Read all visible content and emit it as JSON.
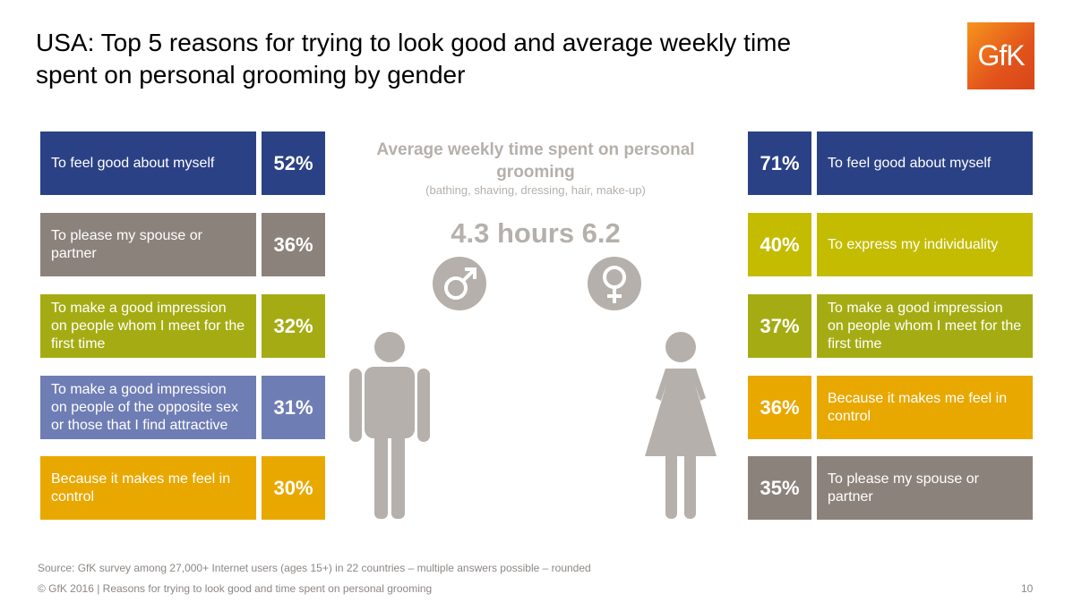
{
  "title": "USA: Top 5 reasons for trying to look good and average weekly time spent on personal grooming by gender",
  "logo": "GfK",
  "center": {
    "heading": "Average weekly time spent on personal grooming",
    "subheading": "(bathing, shaving, dressing, hair, make-up)",
    "hours_text": "4.3 hours 6.2"
  },
  "footer": {
    "source": "Source: GfK survey among 27,000+ Internet users (ages 15+) in 22 countries – multiple answers possible – rounded",
    "copyright": "© GfK 2016 | Reasons for trying to look good and time spent on personal grooming",
    "page": "10"
  },
  "chart_data": [
    {
      "type": "table",
      "gender": "male",
      "categories": [
        "To feel good about myself",
        "To please my spouse or partner",
        "To make a good impression on people whom I meet for the first time",
        "To make a good impression on people of the opposite sex or those that I find attractive",
        "Because it makes me feel in control"
      ],
      "values": [
        52,
        36,
        32,
        31,
        30
      ],
      "value_labels": [
        "52%",
        "36%",
        "32%",
        "31%",
        "30%"
      ],
      "colors": [
        "#2b4185",
        "#8c827c",
        "#a5ac13",
        "#6f7db5",
        "#e9a800"
      ],
      "hours_per_week": 4.3
    },
    {
      "type": "table",
      "gender": "female",
      "categories": [
        "To feel good about myself",
        "To express my individuality",
        "To make a good impression on people whom I meet for the first time",
        "Because it makes me feel in control",
        "To please my spouse or partner"
      ],
      "values": [
        71,
        40,
        37,
        36,
        35
      ],
      "value_labels": [
        "71%",
        "40%",
        "37%",
        "36%",
        "35%"
      ],
      "colors": [
        "#2b4185",
        "#c4bc00",
        "#a5ac13",
        "#e9a800",
        "#8c827c"
      ],
      "hours_per_week": 6.2
    }
  ]
}
